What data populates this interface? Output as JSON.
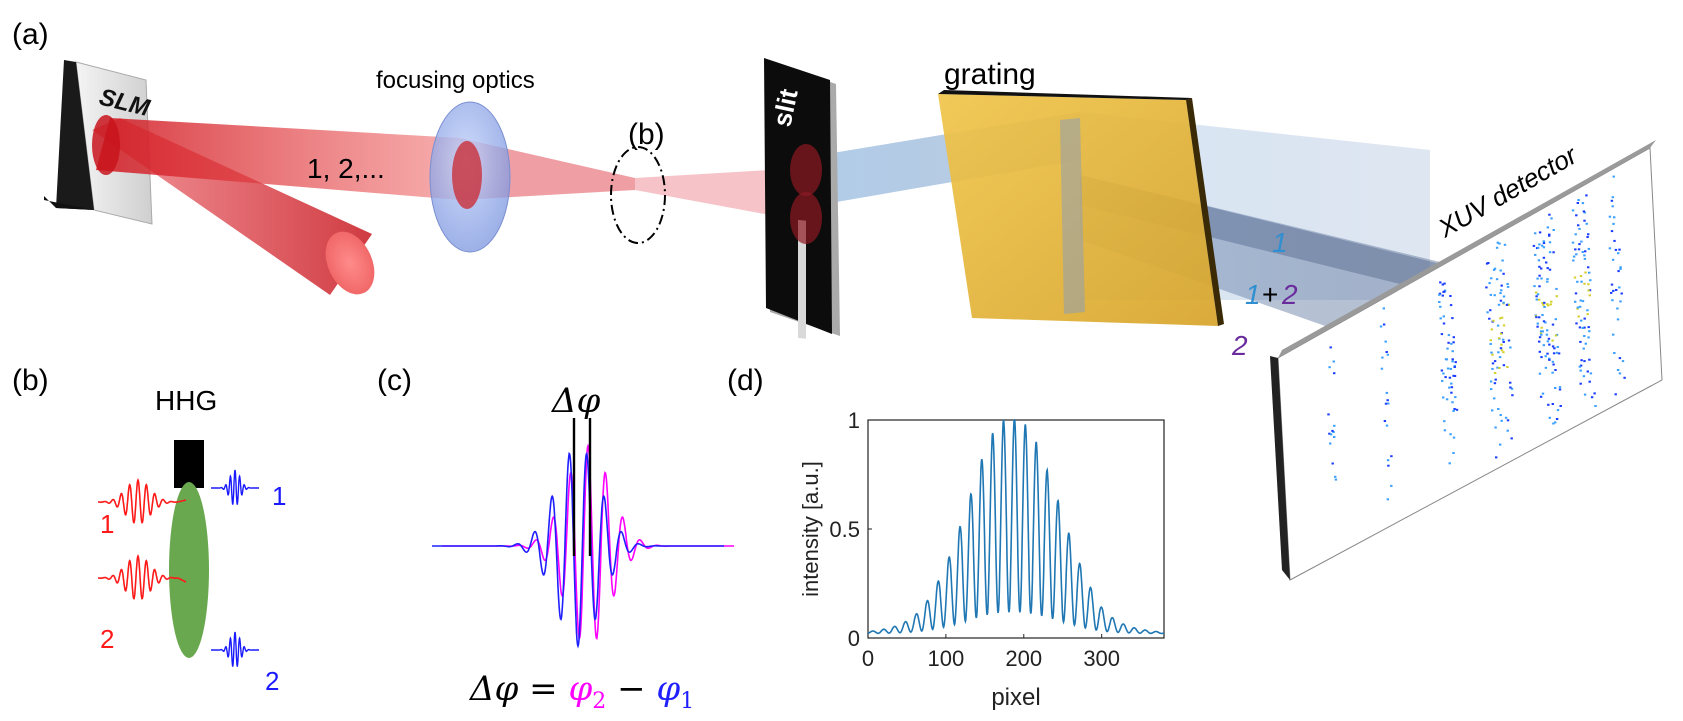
{
  "panel_a": {
    "label": "(a)",
    "slm_label": "SLM",
    "focusing_optics_label": "focusing optics",
    "beam_label": "1, 2,...",
    "focus_marker_label": "(b)",
    "slit_label": "slit",
    "grating_label": "grating",
    "detector_label": "XUV detector",
    "beam_tags": {
      "one": "1",
      "plus": "+",
      "two": "2"
    },
    "colors": {
      "ir_beam": "#e8232a",
      "xuv_beam": "#8fb3d9",
      "grating": "#e6b42e",
      "lens": "#9fb6ec",
      "label_blue": "#2f8fd0",
      "label_purple": "#6a2b9c"
    }
  },
  "panel_b": {
    "label": "(b)",
    "title": "HHG",
    "ir_pulse_labels": [
      "1",
      "2"
    ],
    "xuv_pulse_labels": [
      "1",
      "2"
    ],
    "colors": {
      "ir": "#ff1a1a",
      "xuv": "#1a1aff",
      "gas": "#6aa84f"
    }
  },
  "panel_c": {
    "label": "(c)",
    "title": "Δφ",
    "equation": {
      "lhs": "Δφ = ",
      "phi2": "φ",
      "sub2": "2",
      "minus": " − ",
      "phi1": "φ",
      "sub1": "1"
    },
    "colors": {
      "pulse1": "#ff00ff",
      "pulse2": "#2020ff"
    }
  },
  "panel_d": {
    "label": "(d)",
    "chart_data": {
      "type": "line",
      "xlabel": "pixel",
      "ylabel": "intensity [a.u.]",
      "xlim": [
        0,
        380
      ],
      "ylim": [
        0,
        1
      ],
      "xticks": [
        0,
        100,
        200,
        300
      ],
      "yticks": [
        0,
        0.5,
        1
      ],
      "ytick_labels": [
        "0",
        "0.5",
        "1"
      ],
      "line_color": "#1f77b4",
      "envelope_center": 190,
      "fringe_period": 14,
      "peaks": [
        {
          "x": 62,
          "y": 0.09
        },
        {
          "x": 76,
          "y": 0.15
        },
        {
          "x": 90,
          "y": 0.24
        },
        {
          "x": 104,
          "y": 0.35
        },
        {
          "x": 118,
          "y": 0.49
        },
        {
          "x": 132,
          "y": 0.64
        },
        {
          "x": 146,
          "y": 0.8
        },
        {
          "x": 160,
          "y": 0.92
        },
        {
          "x": 174,
          "y": 0.98
        },
        {
          "x": 188,
          "y": 0.99
        },
        {
          "x": 202,
          "y": 0.96
        },
        {
          "x": 216,
          "y": 0.88
        },
        {
          "x": 230,
          "y": 0.75
        },
        {
          "x": 244,
          "y": 0.61
        },
        {
          "x": 258,
          "y": 0.46
        },
        {
          "x": 272,
          "y": 0.32
        },
        {
          "x": 286,
          "y": 0.21
        },
        {
          "x": 300,
          "y": 0.12
        }
      ]
    }
  }
}
